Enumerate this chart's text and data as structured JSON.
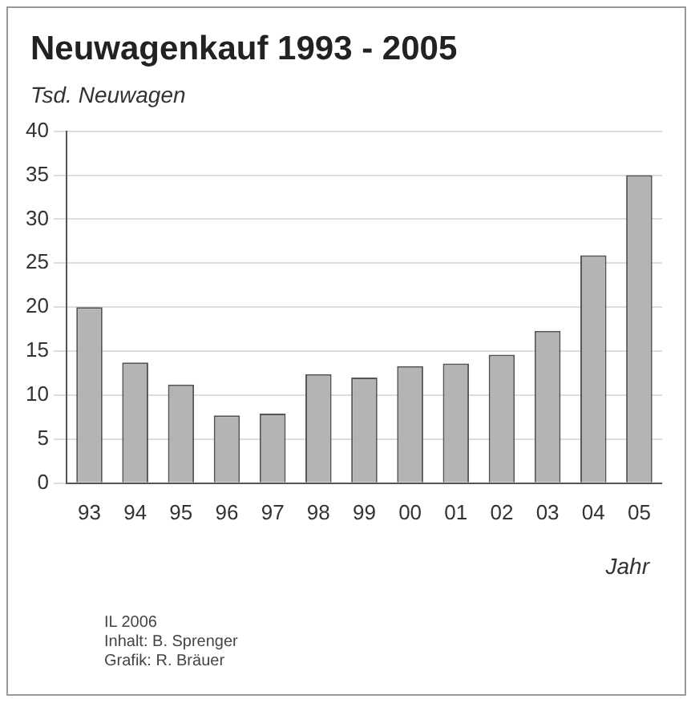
{
  "chart_data": {
    "type": "bar",
    "title": "Neuwagenkauf 1993 - 2005",
    "ylabel": "Tsd. Neuwagen",
    "xlabel": "Jahr",
    "categories": [
      "93",
      "94",
      "95",
      "96",
      "97",
      "98",
      "99",
      "00",
      "01",
      "02",
      "03",
      "04",
      "05"
    ],
    "values": [
      20,
      13.7,
      11.2,
      7.7,
      7.9,
      12.4,
      12.0,
      13.3,
      13.6,
      14.6,
      17.3,
      25.9,
      35
    ],
    "color": "#b4b4b4",
    "ylim": [
      0,
      40
    ],
    "yticks": [
      0,
      5,
      10,
      15,
      20,
      25,
      30,
      35,
      40
    ],
    "grid": "y",
    "annotations": [
      "IL 2006",
      "Inhalt: B. Sprenger",
      "Grafik: R. Bräuer"
    ]
  }
}
